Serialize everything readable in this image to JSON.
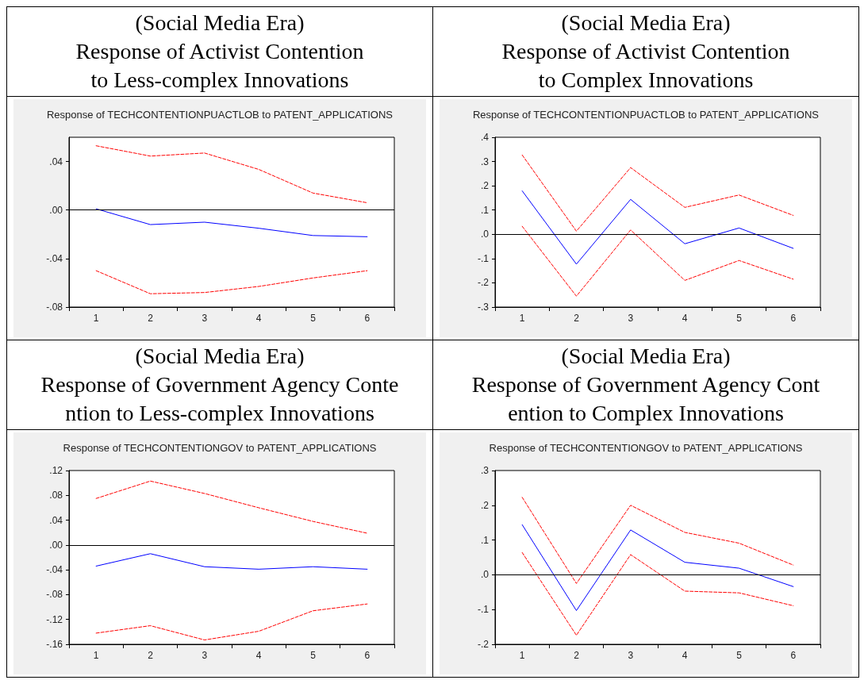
{
  "chart_data": [
    {
      "type": "line",
      "title": "(Social Media Era)\nResponse of Activist Contention\nto Less-complex Innovations",
      "subtitle": "Response of TECHCONTENTIONPUACTLOB to PATENT_APPLICATIONS",
      "categories": [
        "1",
        "2",
        "3",
        "4",
        "5",
        "6"
      ],
      "ylim": [
        -0.08,
        0.06
      ],
      "yticks": [
        {
          "value": -0.08,
          "label": "-.08"
        },
        {
          "value": -0.04,
          "label": "-.04"
        },
        {
          "value": 0,
          "label": ".00"
        },
        {
          "value": 0.04,
          "label": ".04"
        }
      ],
      "grid": false,
      "marker": "none",
      "ref_lines": [
        {
          "axis": "y",
          "value": 0,
          "color": "#000000"
        }
      ],
      "series": [
        {
          "color": "#ff0000",
          "line_style": "dashed",
          "values": [
            0.053,
            0.0445,
            0.047,
            0.0335,
            0.014,
            0.006
          ]
        },
        {
          "color": "#0000ff",
          "line_style": "solid",
          "values": [
            0.001,
            -0.012,
            -0.01,
            -0.015,
            -0.021,
            -0.022
          ]
        },
        {
          "color": "#ff0000",
          "line_style": "dashed",
          "values": [
            -0.05,
            -0.069,
            -0.068,
            -0.063,
            -0.056,
            -0.05
          ]
        }
      ]
    },
    {
      "type": "line",
      "title": "(Social Media Era)\nResponse of Activist Contention\nto Complex Innovations",
      "subtitle": "Response of TECHCONTENTIONPUACTLOB to PATENT_APPLICATIONS",
      "categories": [
        "1",
        "2",
        "3",
        "4",
        "5",
        "6"
      ],
      "ylim": [
        -0.3,
        0.4
      ],
      "yticks": [
        {
          "value": -0.3,
          "label": "-.3"
        },
        {
          "value": -0.2,
          "label": "-.2"
        },
        {
          "value": -0.1,
          "label": "-.1"
        },
        {
          "value": 0,
          "label": ".0"
        },
        {
          "value": 0.1,
          "label": ".1"
        },
        {
          "value": 0.2,
          "label": ".2"
        },
        {
          "value": 0.3,
          "label": ".3"
        },
        {
          "value": 0.4,
          "label": ".4"
        }
      ],
      "grid": false,
      "marker": "none",
      "ref_lines": [
        {
          "axis": "y",
          "value": 0,
          "color": "#000000"
        }
      ],
      "series": [
        {
          "color": "#ff0000",
          "line_style": "dashed",
          "values": [
            0.327,
            0.013,
            0.275,
            0.111,
            0.162,
            0.078
          ]
        },
        {
          "color": "#0000ff",
          "line_style": "solid",
          "values": [
            0.179,
            -0.123,
            0.144,
            -0.039,
            0.026,
            -0.058
          ]
        },
        {
          "color": "#ff0000",
          "line_style": "dashed",
          "values": [
            0.033,
            -0.255,
            0.018,
            -0.19,
            -0.108,
            -0.185
          ]
        }
      ]
    },
    {
      "type": "line",
      "title": "(Social Media Era)\nResponse of Government Agency Conte\nntion to Less-complex Innovations",
      "subtitle": "Response of TECHCONTENTIONGOV to PATENT_APPLICATIONS",
      "categories": [
        "1",
        "2",
        "3",
        "4",
        "5",
        "6"
      ],
      "ylim": [
        -0.16,
        0.12
      ],
      "yticks": [
        {
          "value": -0.16,
          "label": "-.16"
        },
        {
          "value": -0.12,
          "label": "-.12"
        },
        {
          "value": -0.08,
          "label": "-.08"
        },
        {
          "value": -0.04,
          "label": "-.04"
        },
        {
          "value": 0,
          "label": ".00"
        },
        {
          "value": 0.04,
          "label": ".04"
        },
        {
          "value": 0.08,
          "label": ".08"
        },
        {
          "value": 0.12,
          "label": ".12"
        }
      ],
      "grid": false,
      "marker": "none",
      "ref_lines": [
        {
          "axis": "y",
          "value": 0,
          "color": "#000000"
        }
      ],
      "series": [
        {
          "color": "#ff0000",
          "line_style": "dashed",
          "values": [
            0.075,
            0.103,
            0.083,
            0.06,
            0.038,
            0.019
          ]
        },
        {
          "color": "#0000ff",
          "line_style": "solid",
          "values": [
            -0.034,
            -0.014,
            -0.035,
            -0.039,
            -0.035,
            -0.039
          ]
        },
        {
          "color": "#ff0000",
          "line_style": "dashed",
          "values": [
            -0.142,
            -0.13,
            -0.153,
            -0.139,
            -0.106,
            -0.095
          ]
        }
      ]
    },
    {
      "type": "line",
      "title": "(Social Media Era)\nResponse of Government Agency Cont\nention to Complex Innovations",
      "subtitle": "Response of TECHCONTENTIONGOV to PATENT_APPLICATIONS",
      "categories": [
        "1",
        "2",
        "3",
        "4",
        "5",
        "6"
      ],
      "ylim": [
        -0.2,
        0.3
      ],
      "yticks": [
        {
          "value": -0.2,
          "label": "-.2"
        },
        {
          "value": -0.1,
          "label": "-.1"
        },
        {
          "value": 0,
          "label": ".0"
        },
        {
          "value": 0.1,
          "label": ".1"
        },
        {
          "value": 0.2,
          "label": ".2"
        },
        {
          "value": 0.3,
          "label": ".3"
        }
      ],
      "grid": false,
      "marker": "none",
      "ref_lines": [
        {
          "axis": "y",
          "value": 0,
          "color": "#000000"
        }
      ],
      "series": [
        {
          "color": "#ff0000",
          "line_style": "dashed",
          "values": [
            0.223,
            -0.025,
            0.2,
            0.122,
            0.091,
            0.028
          ]
        },
        {
          "color": "#0000ff",
          "line_style": "solid",
          "values": [
            0.144,
            -0.103,
            0.129,
            0.036,
            0.019,
            -0.034
          ]
        },
        {
          "color": "#ff0000",
          "line_style": "dashed",
          "values": [
            0.064,
            -0.174,
            0.058,
            -0.047,
            -0.052,
            -0.089
          ]
        }
      ]
    }
  ]
}
